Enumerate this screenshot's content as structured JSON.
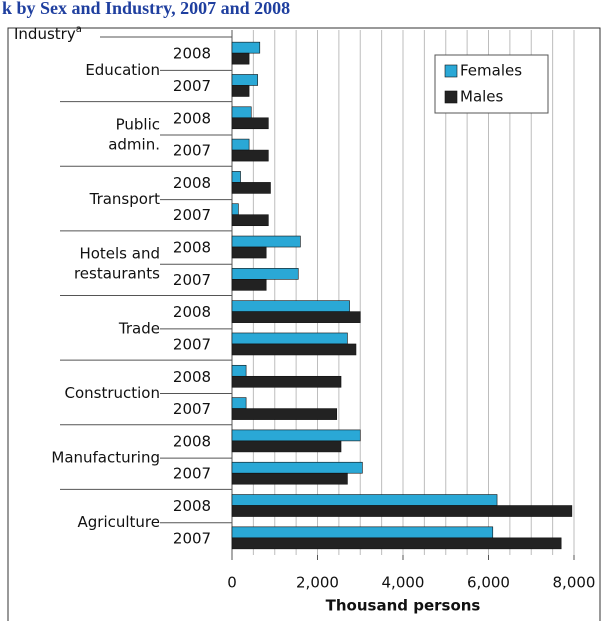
{
  "chart_data": {
    "type": "grouped-hbar",
    "title": "k by Sex and Industry, 2007 and 2008",
    "y_axis_label": "Industry",
    "y_axis_label_note": "a",
    "x_axis_label": "Thousand persons",
    "groups": [
      [
        "Education"
      ],
      [
        "Public",
        "admin."
      ],
      [
        "Transport"
      ],
      [
        "Hotels and",
        "restaurants"
      ],
      [
        "Trade"
      ],
      [
        "Construction"
      ],
      [
        "Manufacturing"
      ],
      [
        "Agriculture"
      ]
    ],
    "years": [
      "2008",
      "2007"
    ],
    "series": [
      {
        "name": "Females",
        "color": "#2aa8d6",
        "values": [
          650,
          600,
          450,
          400,
          200,
          150,
          1600,
          1550,
          2750,
          2700,
          330,
          330,
          3000,
          3050,
          6200,
          6100
        ]
      },
      {
        "name": "Males",
        "color": "#222222",
        "values": [
          400,
          400,
          850,
          850,
          900,
          850,
          800,
          800,
          3000,
          2900,
          2550,
          2450,
          2550,
          2700,
          7950,
          7700
        ]
      }
    ],
    "xlim": [
      0,
      8000
    ],
    "xticks": [
      0,
      {
        "value": 2000,
        "label": "2,000"
      },
      {
        "value": 4000,
        "label": "4,000"
      },
      {
        "value": 6000,
        "label": "6,000"
      },
      {
        "value": 8000,
        "label": "8,000"
      }
    ],
    "minor_xticks": [
      500,
      1000,
      1500,
      2500,
      3000,
      3500,
      4500,
      5000,
      5500,
      6500,
      7000,
      7500
    ],
    "grid": true,
    "legend": "top-right"
  }
}
